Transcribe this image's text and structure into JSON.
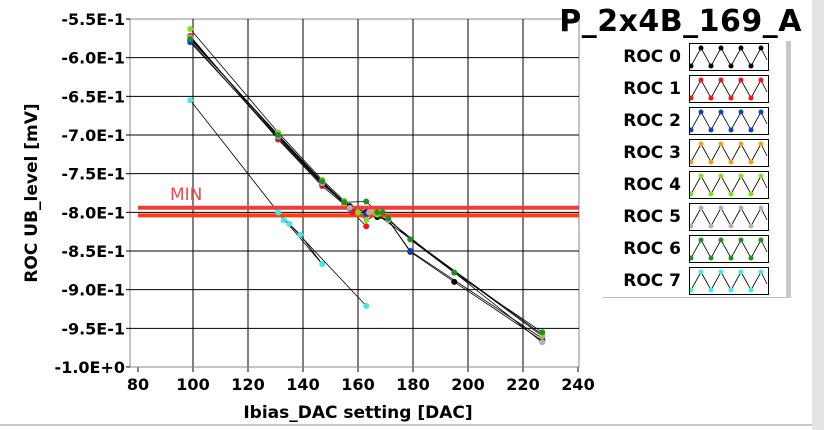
{
  "chart_data": {
    "type": "line",
    "title": "P_2x4B_169_A",
    "xlabel": "Ibias_DAC setting [DAC]",
    "ylabel": "ROC UB_level [mV]",
    "xlim": [
      80,
      240
    ],
    "ylim": [
      -1.0,
      -0.55
    ],
    "xticks": [
      "80",
      "100",
      "120",
      "140",
      "160",
      "180",
      "200",
      "220",
      "240"
    ],
    "yticks": [
      "-5.5E-1",
      "-6.0E-1",
      "-6.5E-1",
      "-7.0E-1",
      "-7.5E-1",
      "-8.0E-1",
      "-8.5E-1",
      "-9.0E-1",
      "-9.5E-1",
      "-1.0E+0"
    ],
    "grid": true,
    "legend_position": "right",
    "annotation": {
      "label": "MIN",
      "lines": [
        -0.794,
        -0.804
      ],
      "colors": [
        "#f03c3c",
        "#ff3c14"
      ]
    },
    "series": [
      {
        "name": "ROC 0",
        "color": "#000000",
        "points": [
          [
            99,
            -0.578
          ],
          [
            131,
            -0.705
          ],
          [
            147,
            -0.764
          ],
          [
            157,
            -0.792
          ],
          [
            163,
            -0.8
          ],
          [
            167,
            -0.806
          ],
          [
            171,
            -0.81
          ],
          [
            179,
            -0.851
          ],
          [
            195,
            -0.89
          ],
          [
            227,
            -0.966
          ]
        ]
      },
      {
        "name": "ROC 1",
        "color": "#ff1010",
        "points": [
          [
            99,
            -0.572
          ],
          [
            131,
            -0.706
          ],
          [
            147,
            -0.766
          ],
          [
            155,
            -0.79
          ],
          [
            158,
            -0.8
          ],
          [
            163,
            -0.818
          ]
        ]
      },
      {
        "name": "ROC 2",
        "color": "#1040c0",
        "points": [
          [
            99,
            -0.58
          ],
          [
            131,
            -0.703
          ],
          [
            147,
            -0.763
          ],
          [
            157,
            -0.795
          ],
          [
            163,
            -0.802
          ],
          [
            171,
            -0.81
          ],
          [
            179,
            -0.85
          ],
          [
            227,
            -0.963
          ]
        ]
      },
      {
        "name": "ROC 3",
        "color": "#f0a020",
        "points": [
          [
            99,
            -0.575
          ],
          [
            131,
            -0.701
          ],
          [
            147,
            -0.761
          ],
          [
            155,
            -0.789
          ],
          [
            160,
            -0.8
          ],
          [
            166,
            -0.8
          ],
          [
            227,
            -0.96
          ]
        ]
      },
      {
        "name": "ROC 4",
        "color": "#80e020",
        "points": [
          [
            99,
            -0.563
          ],
          [
            131,
            -0.697
          ],
          [
            147,
            -0.758
          ],
          [
            155,
            -0.785
          ],
          [
            160,
            -0.8
          ],
          [
            163,
            -0.81
          ],
          [
            167,
            -0.803
          ],
          [
            227,
            -0.958
          ]
        ]
      },
      {
        "name": "ROC 5",
        "color": "#b0b0b0",
        "points": [
          [
            99,
            -0.574
          ],
          [
            131,
            -0.702
          ],
          [
            147,
            -0.762
          ],
          [
            157,
            -0.794
          ],
          [
            164,
            -0.8
          ],
          [
            171,
            -0.81
          ],
          [
            227,
            -0.968
          ]
        ]
      },
      {
        "name": "ROC 6",
        "color": "#20901c",
        "points": [
          [
            99,
            -0.576
          ],
          [
            131,
            -0.7
          ],
          [
            147,
            -0.76
          ],
          [
            155,
            -0.787
          ],
          [
            163,
            -0.786
          ],
          [
            167,
            -0.8
          ],
          [
            169,
            -0.8
          ],
          [
            171,
            -0.808
          ],
          [
            179,
            -0.835
          ],
          [
            195,
            -0.878
          ],
          [
            227,
            -0.955
          ]
        ]
      },
      {
        "name": "ROC 7",
        "color": "#40e8e8",
        "points": [
          [
            99,
            -0.655
          ],
          [
            131,
            -0.8
          ],
          [
            133,
            -0.81
          ],
          [
            135,
            -0.815
          ],
          [
            139,
            -0.829
          ],
          [
            147,
            -0.867
          ],
          [
            131,
            -0.8
          ],
          [
            163,
            -0.921
          ]
        ]
      }
    ]
  }
}
